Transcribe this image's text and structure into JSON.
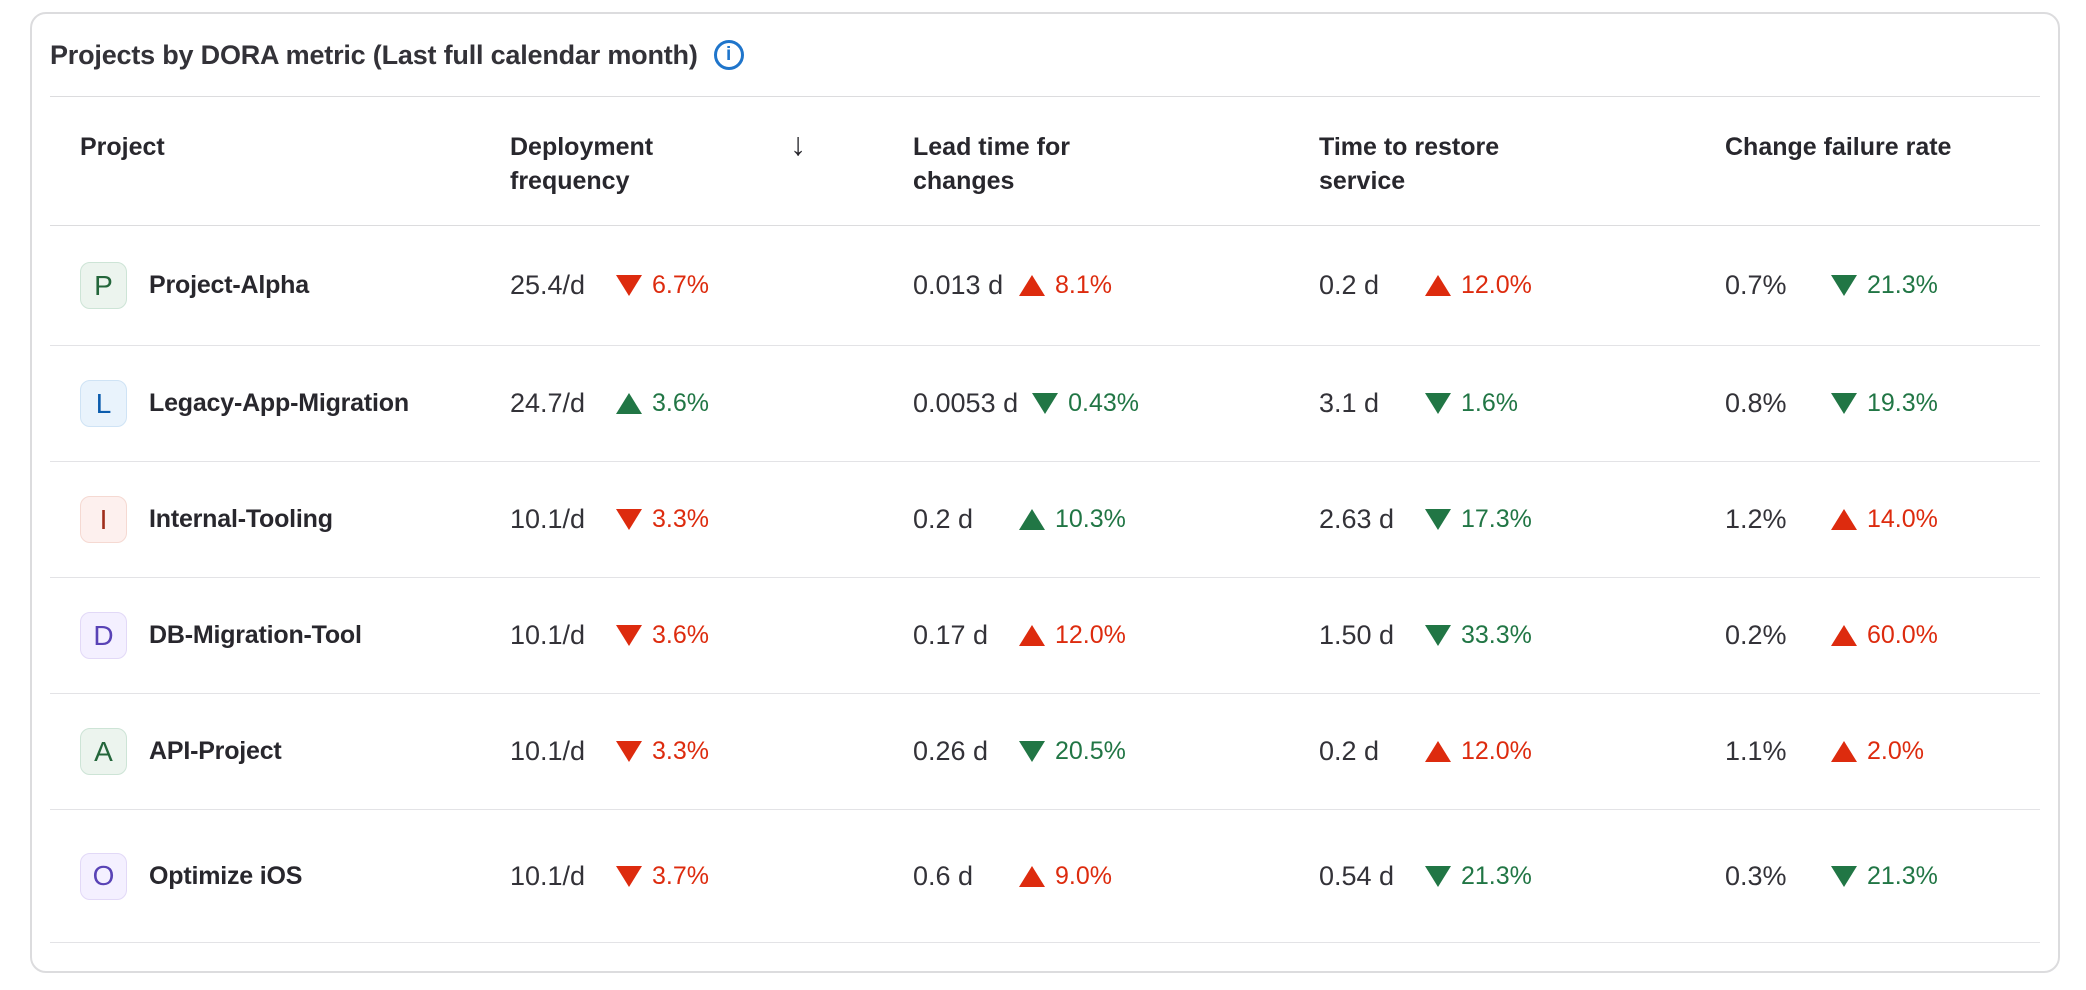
{
  "card": {
    "title": "Projects by DORA metric (Last full calendar month)",
    "info_icon": "i"
  },
  "colors": {
    "good": "#217645",
    "bad": "#dd2b0e",
    "info_blue": "#1f75cb"
  },
  "table": {
    "columns": [
      {
        "label": "Project",
        "sorted": false
      },
      {
        "label": "Deployment frequency",
        "sorted": true,
        "sort_icon": "↓"
      },
      {
        "label": "Lead time for changes",
        "sorted": false
      },
      {
        "label": "Time to restore service",
        "sorted": false
      },
      {
        "label": "Change failure rate",
        "sorted": false
      }
    ],
    "rows": [
      {
        "avatar": {
          "letter": "P",
          "bg": "#ecf4ee",
          "border": "#cde4d6",
          "color": "#24663b"
        },
        "name": "Project-Alpha",
        "metrics": [
          {
            "value": "25.4/d",
            "direction": "down",
            "change": "6.7%",
            "trend": "bad"
          },
          {
            "value": "0.013 d",
            "direction": "up",
            "change": "8.1%",
            "trend": "bad"
          },
          {
            "value": "0.2 d",
            "direction": "up",
            "change": "12.0%",
            "trend": "bad"
          },
          {
            "value": "0.7%",
            "direction": "down",
            "change": "21.3%",
            "trend": "good"
          }
        ]
      },
      {
        "avatar": {
          "letter": "L",
          "bg": "#e9f3fc",
          "border": "#cfe3f5",
          "color": "#0b5cad"
        },
        "name": "Legacy-App-Migration",
        "metrics": [
          {
            "value": "24.7/d",
            "direction": "up",
            "change": "3.6%",
            "trend": "good"
          },
          {
            "value": "0.0053 d",
            "direction": "down",
            "change": "0.43%",
            "trend": "good"
          },
          {
            "value": "3.1 d",
            "direction": "down",
            "change": "1.6%",
            "trend": "good"
          },
          {
            "value": "0.8%",
            "direction": "down",
            "change": "19.3%",
            "trend": "good"
          }
        ]
      },
      {
        "avatar": {
          "letter": "I",
          "bg": "#fdf0ee",
          "border": "#f5d9d2",
          "color": "#a02e1c"
        },
        "name": "Internal-Tooling",
        "metrics": [
          {
            "value": "10.1/d",
            "direction": "down",
            "change": "3.3%",
            "trend": "bad"
          },
          {
            "value": "0.2 d",
            "direction": "up",
            "change": "10.3%",
            "trend": "good"
          },
          {
            "value": "2.63 d",
            "direction": "down",
            "change": "17.3%",
            "trend": "good"
          },
          {
            "value": "1.2%",
            "direction": "up",
            "change": "14.0%",
            "trend": "bad"
          }
        ]
      },
      {
        "avatar": {
          "letter": "D",
          "bg": "#f4f0ff",
          "border": "#e2d9f7",
          "color": "#5943b6"
        },
        "name": "DB-Migration-Tool",
        "metrics": [
          {
            "value": "10.1/d",
            "direction": "down",
            "change": "3.6%",
            "trend": "bad"
          },
          {
            "value": "0.17 d",
            "direction": "up",
            "change": "12.0%",
            "trend": "bad"
          },
          {
            "value": "1.50 d",
            "direction": "down",
            "change": "33.3%",
            "trend": "good"
          },
          {
            "value": "0.2%",
            "direction": "up",
            "change": "60.0%",
            "trend": "bad"
          }
        ]
      },
      {
        "avatar": {
          "letter": "A",
          "bg": "#ecf4ee",
          "border": "#cde4d6",
          "color": "#24663b"
        },
        "name": "API-Project",
        "metrics": [
          {
            "value": "10.1/d",
            "direction": "down",
            "change": "3.3%",
            "trend": "bad"
          },
          {
            "value": "0.26 d",
            "direction": "down",
            "change": "20.5%",
            "trend": "good"
          },
          {
            "value": "0.2 d",
            "direction": "up",
            "change": "12.0%",
            "trend": "bad"
          },
          {
            "value": "1.1%",
            "direction": "up",
            "change": "2.0%",
            "trend": "bad"
          }
        ]
      },
      {
        "avatar": {
          "letter": "O",
          "bg": "#f4f0ff",
          "border": "#e2d9f7",
          "color": "#5943b6"
        },
        "name": "Optimize iOS",
        "metrics": [
          {
            "value": "10.1/d",
            "direction": "down",
            "change": "3.7%",
            "trend": "bad"
          },
          {
            "value": "0.6 d",
            "direction": "up",
            "change": "9.0%",
            "trend": "bad"
          },
          {
            "value": "0.54 d",
            "direction": "down",
            "change": "21.3%",
            "trend": "good"
          },
          {
            "value": "0.3%",
            "direction": "down",
            "change": "21.3%",
            "trend": "good"
          }
        ]
      }
    ]
  }
}
